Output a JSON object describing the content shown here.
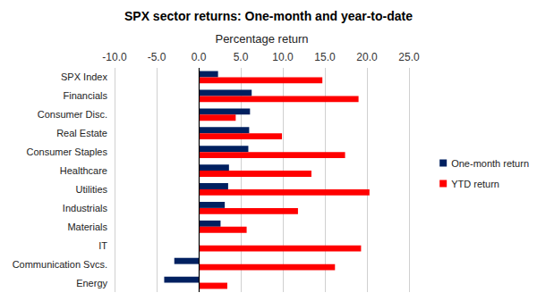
{
  "chart_data": {
    "type": "bar",
    "orientation": "horizontal",
    "title": "SPX sector returns: One-month and year-to-date",
    "x_label": "Percentage return",
    "categories": [
      "SPX Index",
      "Financials",
      "Consumer Disc.",
      "Real Estate",
      "Consumer Staples",
      "Healthcare",
      "Utilities",
      "Industrials",
      "Materials",
      "IT",
      "Communication Svcs.",
      "Energy"
    ],
    "series": [
      {
        "name": "One-month return",
        "color": "#002060",
        "values": [
          2.3,
          6.3,
          6.1,
          6.0,
          5.9,
          3.6,
          3.5,
          3.1,
          2.6,
          0.1,
          -2.9,
          -4.1
        ]
      },
      {
        "name": "YTD return",
        "color": "#ff0000",
        "values": [
          14.7,
          19.0,
          4.4,
          9.9,
          17.4,
          13.4,
          20.3,
          11.8,
          5.7,
          19.3,
          16.2,
          3.4
        ]
      }
    ],
    "xlim": [
      -10,
      25
    ],
    "xticks": [
      {
        "value": -10,
        "label": "-10.0"
      },
      {
        "value": -5,
        "label": "-5.0"
      },
      {
        "value": 0,
        "label": "0.0"
      },
      {
        "value": 5,
        "label": "5.0"
      },
      {
        "value": 10,
        "label": "10.0"
      },
      {
        "value": 15,
        "label": "15.0"
      },
      {
        "value": 20,
        "label": "20.0"
      },
      {
        "value": 25,
        "label": "25.0"
      }
    ],
    "grid": true,
    "legend": "right"
  }
}
